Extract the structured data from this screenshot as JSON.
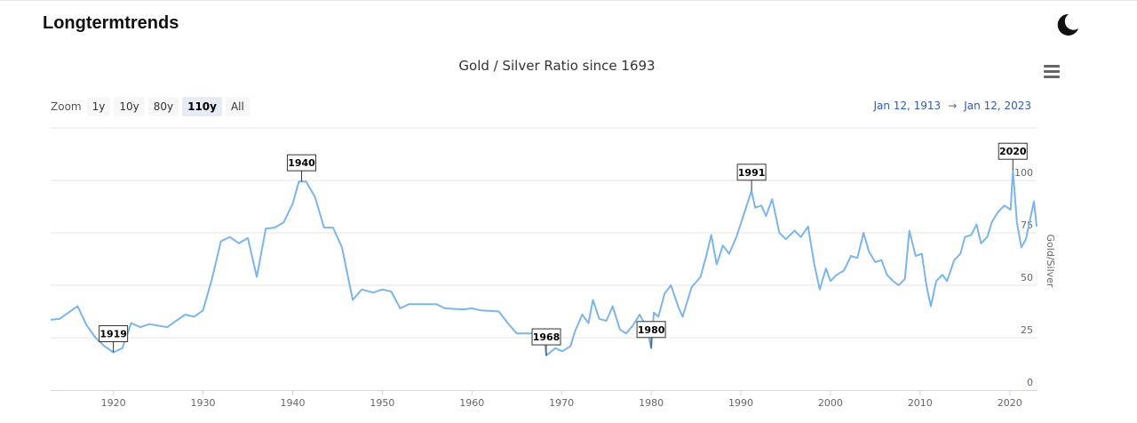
{
  "header": {
    "site_title": "Longtermtrends",
    "theme_icon": "moon-icon"
  },
  "toolbar": {
    "zoom_label": "Zoom",
    "zoom_options": [
      "1y",
      "10y",
      "80y",
      "110y",
      "All"
    ],
    "active_zoom": "110y",
    "menu_icon": "hamburger-menu-icon",
    "range_from": "Jan 12, 1913",
    "range_arrow": "→",
    "range_to": "Jan 12, 2023"
  },
  "colors": {
    "series": "#7cb5ec",
    "grid": "#e6e6e6",
    "axis": "#ccd6eb"
  },
  "chart_data": {
    "type": "line",
    "title": "Gold / Silver Ratio since 1693",
    "xlabel": "",
    "ylabel": "Gold/Silver",
    "xlim": [
      1913,
      2023
    ],
    "ylim": [
      0,
      125
    ],
    "x_ticks": [
      1920,
      1930,
      1940,
      1950,
      1960,
      1970,
      1980,
      1990,
      2000,
      2010,
      2020
    ],
    "y_ticks": [
      0,
      25,
      50,
      75,
      100
    ],
    "grid": true,
    "legend": "none",
    "series": [
      {
        "name": "",
        "points": [
          [
            1913,
            33.5
          ],
          [
            1914,
            34
          ],
          [
            1915,
            37
          ],
          [
            1916,
            40
          ],
          [
            1917,
            31
          ],
          [
            1918,
            25
          ],
          [
            1919,
            21
          ],
          [
            1920,
            18
          ],
          [
            1921,
            20
          ],
          [
            1922,
            32
          ],
          [
            1923,
            30
          ],
          [
            1924,
            31.5
          ],
          [
            1926,
            30
          ],
          [
            1928,
            36
          ],
          [
            1929,
            35
          ],
          [
            1930,
            38
          ],
          [
            1931,
            53
          ],
          [
            1932,
            71
          ],
          [
            1933,
            73
          ],
          [
            1934,
            70
          ],
          [
            1935,
            72.5
          ],
          [
            1936,
            54
          ],
          [
            1937,
            77
          ],
          [
            1938,
            77.5
          ],
          [
            1939,
            80
          ],
          [
            1940,
            89
          ],
          [
            1940.7,
            99.5
          ],
          [
            1941.5,
            99.5
          ],
          [
            1942.5,
            92
          ],
          [
            1943.5,
            77.5
          ],
          [
            1944.5,
            77.5
          ],
          [
            1945.5,
            68
          ],
          [
            1946.7,
            43
          ],
          [
            1947.7,
            48
          ],
          [
            1949,
            46.5
          ],
          [
            1950,
            48
          ],
          [
            1951,
            47
          ],
          [
            1952,
            39
          ],
          [
            1953,
            41
          ],
          [
            1956,
            41
          ],
          [
            1957,
            39
          ],
          [
            1959,
            38.5
          ],
          [
            1960,
            39
          ],
          [
            1961,
            38
          ],
          [
            1963,
            37.5
          ],
          [
            1964,
            32
          ],
          [
            1965,
            27
          ],
          [
            1968,
            27
          ],
          [
            1968.3,
            16.5
          ],
          [
            1969.3,
            20
          ],
          [
            1970.1,
            18.5
          ],
          [
            1971,
            21
          ],
          [
            1971.5,
            28
          ],
          [
            1972.3,
            36
          ],
          [
            1973,
            32
          ],
          [
            1973.5,
            43
          ],
          [
            1974.2,
            34
          ],
          [
            1975,
            33
          ],
          [
            1975.7,
            40
          ],
          [
            1976.5,
            29
          ],
          [
            1977.2,
            27
          ],
          [
            1978,
            31
          ],
          [
            1978.7,
            36
          ],
          [
            1979.5,
            30
          ],
          [
            1980,
            20
          ],
          [
            1980.3,
            37
          ],
          [
            1980.8,
            35
          ],
          [
            1981.5,
            46
          ],
          [
            1982.2,
            50
          ],
          [
            1983,
            40
          ],
          [
            1983.5,
            35
          ],
          [
            1984.5,
            49
          ],
          [
            1985.5,
            54
          ],
          [
            1986.2,
            65
          ],
          [
            1986.7,
            74
          ],
          [
            1987.3,
            60
          ],
          [
            1988,
            69
          ],
          [
            1988.7,
            65
          ],
          [
            1989.5,
            73
          ],
          [
            1990.2,
            82
          ],
          [
            1990.8,
            90
          ],
          [
            1991.2,
            95
          ],
          [
            1991.6,
            87
          ],
          [
            1992.3,
            88
          ],
          [
            1992.8,
            83
          ],
          [
            1993.5,
            91
          ],
          [
            1994.3,
            75
          ],
          [
            1995,
            72
          ],
          [
            1996,
            76
          ],
          [
            1996.7,
            73
          ],
          [
            1997.5,
            78
          ],
          [
            1998.2,
            60
          ],
          [
            1998.8,
            48
          ],
          [
            1999.5,
            58
          ],
          [
            2000,
            52
          ],
          [
            2000.7,
            55
          ],
          [
            2001.5,
            57
          ],
          [
            2002.3,
            64
          ],
          [
            2003,
            63
          ],
          [
            2003.7,
            75
          ],
          [
            2004.3,
            66
          ],
          [
            2005,
            61
          ],
          [
            2005.7,
            62
          ],
          [
            2006.3,
            55
          ],
          [
            2007,
            52
          ],
          [
            2007.6,
            50
          ],
          [
            2008.3,
            53
          ],
          [
            2008.8,
            76
          ],
          [
            2009.5,
            64
          ],
          [
            2010.2,
            65
          ],
          [
            2010.7,
            50
          ],
          [
            2011.2,
            40
          ],
          [
            2011.8,
            52
          ],
          [
            2012.5,
            55
          ],
          [
            2013,
            52
          ],
          [
            2013.8,
            62
          ],
          [
            2014.5,
            65
          ],
          [
            2015,
            73
          ],
          [
            2015.7,
            74
          ],
          [
            2016.3,
            79
          ],
          [
            2016.8,
            70
          ],
          [
            2017.5,
            73
          ],
          [
            2018,
            80
          ],
          [
            2018.7,
            85
          ],
          [
            2019.4,
            88
          ],
          [
            2020.1,
            86
          ],
          [
            2020.35,
            105
          ],
          [
            2020.8,
            80
          ],
          [
            2021.3,
            68
          ],
          [
            2021.8,
            72
          ],
          [
            2022.3,
            82
          ],
          [
            2022.7,
            90
          ],
          [
            2023,
            78
          ]
        ]
      }
    ],
    "flags": [
      {
        "label": "1919",
        "x": 1920,
        "y": 18
      },
      {
        "label": "1940",
        "x": 1941,
        "y": 99.5
      },
      {
        "label": "1968",
        "x": 1968.3,
        "y": 16.5
      },
      {
        "label": "1980",
        "x": 1980,
        "y": 20
      },
      {
        "label": "1991",
        "x": 1991.2,
        "y": 95
      },
      {
        "label": "2020",
        "x": 2020.35,
        "y": 105
      }
    ]
  }
}
